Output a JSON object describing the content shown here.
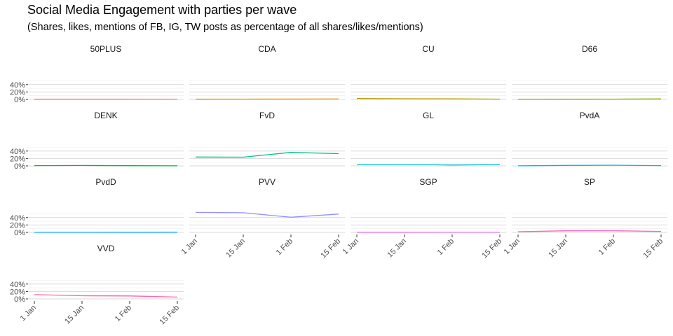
{
  "chart_data": {
    "type": "line",
    "title": "Social Media Engagement with parties per wave",
    "subtitle": "(Shares, likes, mentions of FB, IG, TW posts as percentage of all shares/likes/mentions)",
    "xlabel": "",
    "ylabel": "",
    "x": [
      "1 Jan",
      "15 Jan",
      "1 Feb",
      "15 Feb"
    ],
    "ylim": [
      0,
      50
    ],
    "y_ticks": [
      "0%",
      "20%",
      "40%"
    ],
    "grid": true,
    "legend": "none",
    "layout": "facet-wrap-4-columns",
    "series": [
      {
        "name": "50PLUS",
        "color": "#F8766D",
        "values": [
          0.4,
          0.3,
          0.3,
          0.2
        ]
      },
      {
        "name": "CDA",
        "color": "#DE8C00",
        "values": [
          0.5,
          0.8,
          1.0,
          1.1
        ]
      },
      {
        "name": "CU",
        "color": "#B79F00",
        "values": [
          2.5,
          1.9,
          1.6,
          0.7
        ]
      },
      {
        "name": "D66",
        "color": "#7CAE00",
        "values": [
          0.2,
          0.3,
          0.8,
          1.3
        ]
      },
      {
        "name": "DENK",
        "color": "#00BA38",
        "values": [
          0.8,
          1.1,
          0.6,
          0.1
        ]
      },
      {
        "name": "FvD",
        "color": "#00C08B",
        "values": [
          24.0,
          23.5,
          36.5,
          33.0
        ]
      },
      {
        "name": "GL",
        "color": "#00BFC4",
        "values": [
          3.5,
          4.0,
          2.5,
          3.6
        ]
      },
      {
        "name": "PvdA",
        "color": "#00B4F0",
        "values": [
          0.2,
          1.3,
          1.8,
          0.7
        ]
      },
      {
        "name": "PvdD",
        "color": "#00A9FF",
        "values": [
          0.1,
          0.1,
          0.3,
          0.5
        ]
      },
      {
        "name": "PVV",
        "color": "#9590FF",
        "values": [
          54.0,
          53.0,
          41.0,
          49.5
        ]
      },
      {
        "name": "SGP",
        "color": "#E76BF3",
        "values": [
          0.4,
          0.3,
          0.2,
          0.2
        ]
      },
      {
        "name": "SP",
        "color": "#FF62BC",
        "values": [
          1.8,
          4.3,
          4.5,
          2.7
        ]
      },
      {
        "name": "VVD",
        "color": "#FF65AC",
        "values": [
          11.5,
          8.5,
          8.0,
          5.0
        ]
      }
    ]
  }
}
